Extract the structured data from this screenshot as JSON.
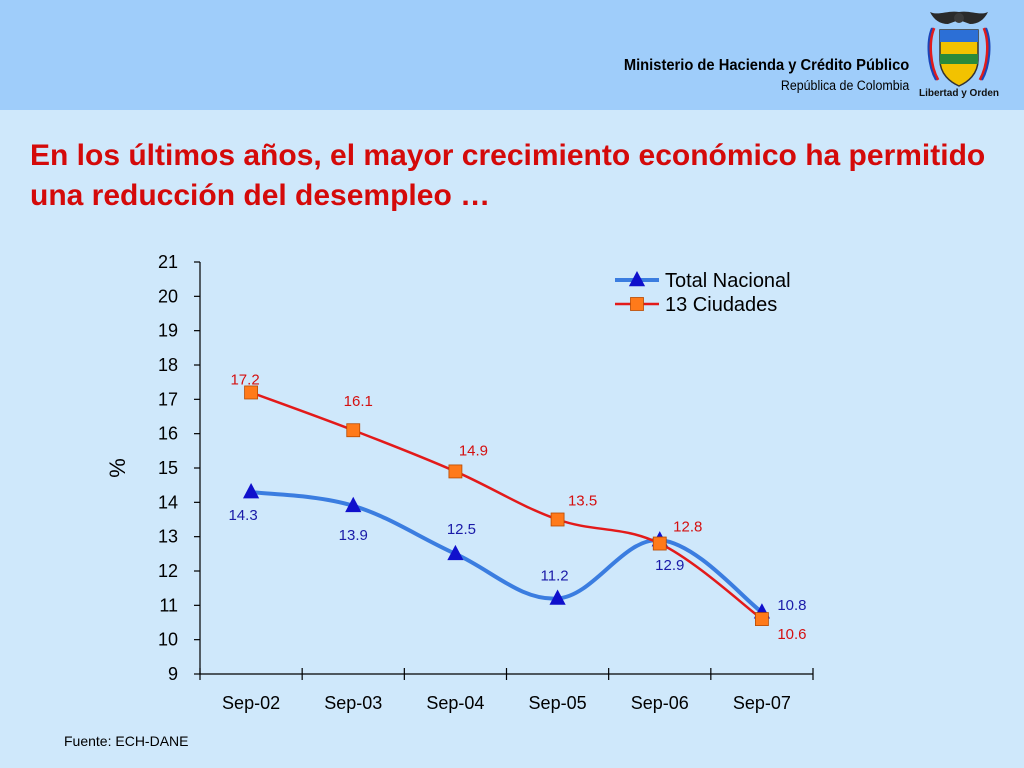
{
  "header": {
    "ministry": "Ministerio de Hacienda y Crédito Público",
    "country": "República de Colombia",
    "motto": "Libertad y Orden"
  },
  "title": "En los últimos años, el mayor crecimiento económico ha permitido una reducción del desempleo …",
  "source": "Fuente: ECH-DANE",
  "colors": {
    "header_bg": "#9fcdfa",
    "page_bg": "#cfe8fb",
    "title": "#d40a0a",
    "series_total": "#3b7de0",
    "series_13": "#e31a1a",
    "marker_total": "#1010cc",
    "marker_13": "#ff7a1a"
  },
  "chart_data": {
    "type": "line",
    "categories": [
      "Sep-02",
      "Sep-03",
      "Sep-04",
      "Sep-05",
      "Sep-06",
      "Sep-07"
    ],
    "series": [
      {
        "name": "Total Nacional",
        "values": [
          14.3,
          13.9,
          12.5,
          11.2,
          12.9,
          10.8
        ],
        "marker": "triangle"
      },
      {
        "name": "13 Ciudades",
        "values": [
          17.2,
          16.1,
          14.9,
          13.5,
          12.8,
          10.6
        ],
        "marker": "square"
      }
    ],
    "ylabel": "%",
    "ylim": [
      9,
      21
    ],
    "yticks": [
      9,
      10,
      11,
      12,
      13,
      14,
      15,
      16,
      17,
      18,
      19,
      20,
      21
    ],
    "legend": "top-right",
    "grid": false
  }
}
